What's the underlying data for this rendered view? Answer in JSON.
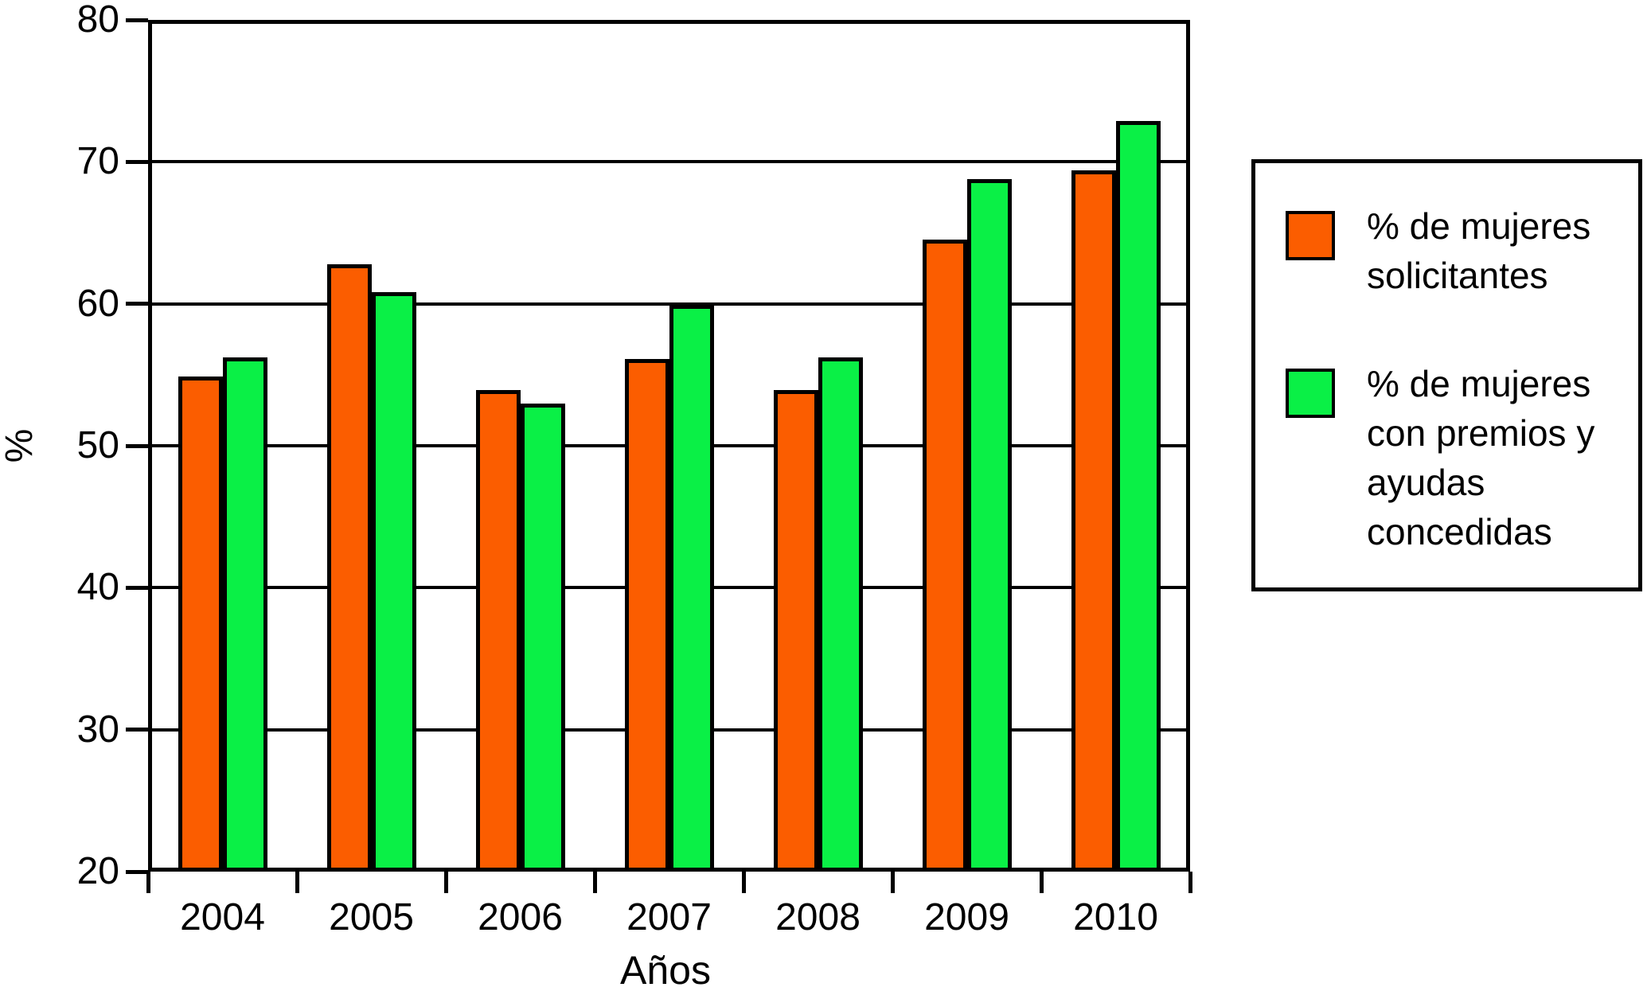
{
  "chart_data": {
    "type": "bar",
    "title": "",
    "categories": [
      "2004",
      "2005",
      "2006",
      "2007",
      "2008",
      "2009",
      "2010"
    ],
    "series": [
      {
        "name": "% de mujeres solicitantes",
        "color": "#FB5D00",
        "values": [
          54.9,
          62.8,
          53.9,
          56.1,
          53.9,
          64.5,
          69.4
        ]
      },
      {
        "name": "% de mujeres con premios y ayudas concedidas",
        "color": "#0AF046",
        "values": [
          56.2,
          60.8,
          53.0,
          59.9,
          56.2,
          68.8,
          72.9
        ]
      }
    ],
    "xlabel": "Años",
    "ylabel": "%",
    "ylim": [
      20,
      80
    ],
    "y_ticks": [
      20,
      30,
      40,
      50,
      60,
      70,
      80
    ],
    "grid": "horizontal",
    "legend_position": "right",
    "bar_border_color": "#000000",
    "axis_color": "#000000"
  },
  "legend": {
    "items": [
      {
        "series": "solicitantes",
        "swatch_color": "#FB5D00",
        "label": "% de mujeres\nsolicitantes"
      },
      {
        "series": "concedidas",
        "swatch_color": "#0AF046",
        "label": "% de mujeres\ncon premios y\nayudas\nconcedidas"
      }
    ]
  }
}
